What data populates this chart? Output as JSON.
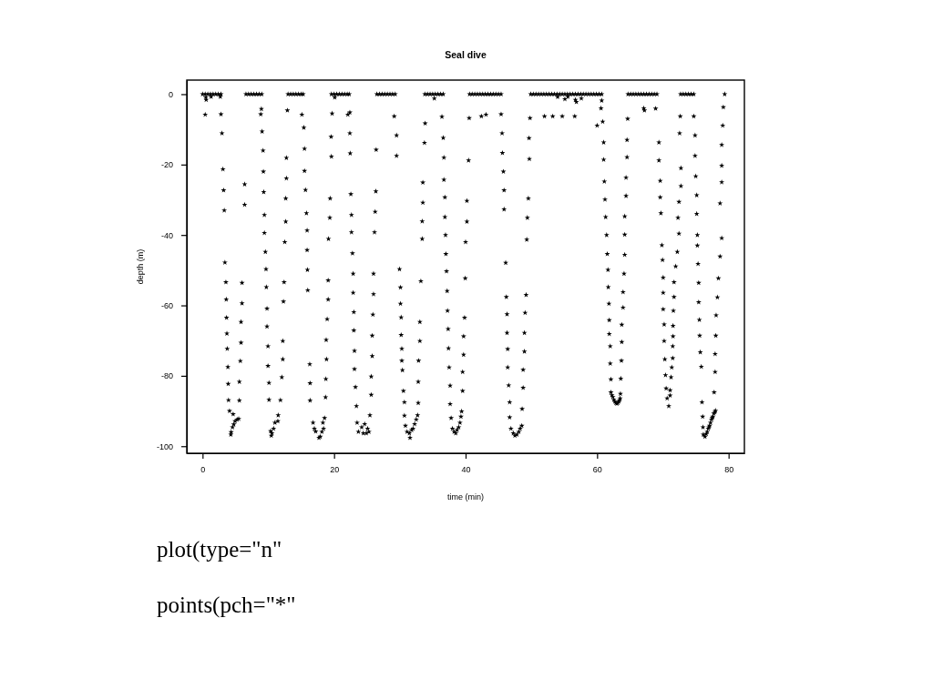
{
  "chart_data": {
    "type": "scatter",
    "title": "Seal dive",
    "xlabel": "time (min)",
    "ylabel": "depth (m)",
    "xlim": [
      -2.4,
      82.4
    ],
    "ylim": [
      -102,
      4
    ],
    "xticks": [
      0,
      20,
      40,
      60,
      80
    ],
    "yticks": [
      0,
      -20,
      -40,
      -60,
      -80,
      -100
    ],
    "color": "#000000",
    "marker": "star",
    "annotations": [
      "plot(type=\"n\"",
      "points(pch=\"*\""
    ],
    "x": [
      0,
      0.4,
      0.8,
      1.2,
      1.6,
      2.0,
      2.4,
      2.8,
      0.5,
      0.55,
      1.3,
      2.7,
      0.4,
      2.8,
      2.95,
      3.1,
      3.2,
      3.3,
      3.4,
      3.55,
      3.6,
      3.65,
      3.7,
      3.75,
      3.85,
      3.9,
      3.95,
      4.1,
      4.3,
      4.35,
      4.55,
      4.65,
      4.75,
      4.95,
      5.25,
      5.5,
      5.6,
      5.6,
      5.75,
      5.85,
      5.85,
      6.0,
      6.0,
      6.4,
      6.4,
      6.6,
      7.0,
      7.4,
      7.8,
      8.2,
      8.6,
      9.0,
      8.95,
      8.85,
      9.05,
      9.2,
      9.25,
      9.3,
      9.4,
      9.4,
      9.55,
      9.65,
      9.7,
      9.8,
      9.8,
      9.95,
      9.95,
      10.1,
      10.1,
      10.35,
      10.45,
      10.55,
      10.8,
      11.0,
      11.45,
      11.5,
      11.85,
      12.05,
      12.2,
      12.2,
      12.3,
      12.4,
      12.5,
      12.65,
      12.65,
      12.75,
      12.75,
      12.9,
      13.0,
      13.4,
      13.8,
      14.2,
      14.6,
      15.0,
      15.3,
      15.1,
      15.4,
      15.5,
      15.5,
      15.65,
      15.8,
      15.9,
      15.9,
      15.95,
      16.0,
      16.3,
      16.35,
      16.35,
      16.8,
      17.0,
      17.2,
      17.7,
      17.9,
      18.15,
      18.3,
      18.4,
      18.55,
      18.7,
      18.75,
      18.85,
      18.8,
      18.95,
      19.1,
      19.1,
      19.15,
      19.35,
      19.4,
      19.6,
      19.55,
      19.7,
      19.6,
      20.0,
      20.4,
      20.8,
      21.2,
      21.6,
      22.0,
      22.3,
      20.1,
      22.1,
      22.4,
      22.4,
      22.45,
      22.55,
      22.65,
      22.65,
      22.8,
      22.9,
      22.9,
      23.0,
      23.0,
      23.1,
      23.1,
      23.25,
      23.4,
      23.5,
      23.7,
      24.2,
      24.45,
      24.65,
      24.9,
      25.1,
      25.3,
      25.45,
      25.65,
      25.65,
      25.8,
      25.8,
      25.9,
      26.0,
      26.0,
      26.15,
      26.25,
      26.35,
      26.4,
      26.5,
      26.9,
      27.3,
      27.7,
      28.1,
      28.5,
      28.9,
      29.3,
      29.15,
      29.5,
      29.5,
      29.95,
      30.1,
      30.1,
      30.2,
      30.2,
      30.3,
      30.3,
      30.4,
      30.55,
      30.7,
      30.7,
      30.85,
      31.1,
      31.45,
      31.55,
      31.8,
      32.0,
      32.25,
      32.5,
      32.7,
      32.8,
      32.8,
      32.85,
      33.05,
      33.05,
      33.2,
      33.4,
      33.4,
      33.5,
      33.5,
      33.75,
      33.85,
      33.8,
      34.2,
      34.6,
      35.0,
      35.4,
      35.8,
      36.2,
      36.6,
      35.25,
      36.4,
      36.6,
      36.7,
      36.7,
      36.85,
      36.85,
      36.95,
      37.0,
      37.1,
      37.2,
      37.25,
      37.35,
      37.4,
      37.5,
      37.65,
      37.65,
      37.8,
      38.0,
      38.25,
      38.5,
      38.7,
      38.95,
      39.15,
      39.3,
      39.4,
      39.55,
      39.55,
      39.7,
      39.7,
      39.85,
      39.95,
      40.0,
      40.2,
      40.2,
      40.45,
      40.55,
      40.6,
      41.0,
      41.4,
      41.8,
      42.2,
      42.6,
      43.0,
      43.4,
      43.8,
      44.2,
      44.6,
      45.0,
      45.4,
      42.4,
      43.1,
      45.4,
      45.55,
      45.6,
      45.75,
      45.85,
      45.85,
      46.1,
      46.2,
      46.3,
      46.3,
      46.4,
      46.4,
      46.55,
      46.7,
      46.7,
      46.9,
      47.25,
      47.5,
      47.8,
      48.1,
      48.3,
      48.55,
      48.6,
      48.75,
      48.75,
      48.95,
      48.95,
      49.05,
      49.2,
      49.3,
      49.4,
      49.55,
      49.7,
      49.65,
      49.8,
      49.9,
      50.3,
      50.7,
      51.1,
      51.5,
      51.9,
      52.3,
      52.7,
      53.1,
      53.5,
      53.9,
      54.3,
      54.7,
      55.1,
      55.5,
      55.9,
      56.3,
      56.7,
      57.1,
      57.5,
      57.9,
      58.3,
      58.7,
      59.1,
      59.5,
      59.9,
      60.3,
      60.7,
      52.0,
      53.25,
      54.7,
      56.6,
      55.1,
      55.55,
      56.85,
      56.7,
      57.6,
      54.0,
      60.7,
      60.6,
      60.85,
      60.0,
      61.0,
      61.0,
      61.1,
      61.2,
      61.3,
      61.45,
      61.55,
      61.65,
      61.7,
      61.8,
      61.85,
      61.85,
      62.0,
      62.0,
      62.1,
      62.1,
      62.25,
      62.4,
      62.55,
      62.7,
      62.85,
      63.0,
      63.15,
      63.3,
      63.4,
      63.5,
      63.55,
      63.6,
      63.7,
      63.75,
      63.75,
      63.95,
      63.95,
      64.1,
      64.2,
      64.2,
      64.2,
      64.4,
      64.4,
      64.55,
      64.55,
      64.65,
      64.7,
      65.1,
      65.5,
      65.9,
      66.3,
      66.7,
      67.1,
      67.5,
      67.9,
      68.3,
      68.7,
      69.1,
      67.1,
      67.2,
      68.9,
      69.4,
      69.4,
      69.6,
      69.6,
      69.7,
      69.85,
      69.95,
      70.05,
      70.05,
      70.05,
      70.2,
      70.2,
      70.3,
      70.4,
      70.5,
      70.65,
      70.9,
      71.1,
      71.1,
      71.25,
      71.35,
      71.5,
      71.5,
      71.55,
      71.55,
      71.6,
      71.7,
      71.7,
      71.95,
      72.2,
      72.45,
      72.3,
      72.45,
      72.75,
      72.75,
      72.55,
      72.65,
      72.7,
      73.1,
      73.5,
      73.9,
      74.3,
      74.7,
      74.7,
      74.9,
      74.9,
      75.0,
      75.15,
      75.15,
      75.25,
      75.25,
      75.35,
      75.45,
      75.45,
      75.55,
      75.6,
      75.7,
      75.85,
      75.95,
      76.05,
      76.1,
      76.15,
      76.4,
      76.6,
      76.75,
      76.9,
      77.0,
      77.1,
      77.25,
      77.4,
      77.5,
      77.6,
      77.75,
      77.9,
      78.0,
      77.8,
      77.95,
      77.95,
      78.05,
      78.1,
      78.3,
      78.45,
      78.7,
      78.95,
      78.7,
      78.95,
      78.95,
      78.95,
      79.1,
      79.2,
      79.4
    ],
    "values": [
      0,
      0,
      0,
      0,
      0,
      0,
      0,
      0,
      -0.9,
      -1.6,
      -0.7,
      -0.7,
      -5.8,
      -5.7,
      -11.1,
      -21.3,
      -27.3,
      -33,
      -47.8,
      -53.4,
      -58.3,
      -63.5,
      -68,
      -72.3,
      -77.5,
      -82.3,
      -86.9,
      -90,
      -96.7,
      -96,
      -94.6,
      -90.9,
      -93.8,
      -92.9,
      -92.4,
      -92.2,
      -87,
      -81.7,
      -75.8,
      -70.6,
      -64.7,
      -59.4,
      -53.6,
      -31.4,
      -25.6,
      0,
      0,
      0,
      0,
      0,
      0,
      0,
      -4.2,
      -5.7,
      -10.6,
      -16,
      -22,
      -27.8,
      -34.3,
      -39.4,
      -44.8,
      -49.7,
      -54.8,
      -60.9,
      -66,
      -71.6,
      -77.2,
      -82,
      -86.8,
      -95.7,
      -97,
      -96.3,
      -95,
      -93.3,
      -92.9,
      -91.2,
      -86.9,
      -80.4,
      -75.3,
      -70.1,
      -58.9,
      -53.4,
      -42,
      -36.2,
      -29.6,
      -23.9,
      -18.1,
      -4.6,
      0,
      0,
      0,
      0,
      0,
      0,
      0,
      -5.8,
      -9.5,
      -15.5,
      -21.8,
      -27.2,
      -33.8,
      -38.7,
      -44.3,
      -49.9,
      -55.7,
      -76.7,
      -82.1,
      -87,
      -93.3,
      -95,
      -95.8,
      -97.6,
      -97.3,
      -95.9,
      -93.3,
      -95,
      -92,
      -86.1,
      -80.9,
      -75.3,
      -69.8,
      -63.9,
      -58.3,
      -52.9,
      -41.1,
      -35.1,
      -29.6,
      -17.7,
      -12.1,
      -5.5,
      0,
      0,
      0,
      0,
      0,
      0,
      0,
      0,
      -0.9,
      -5.8,
      -5.2,
      -11.1,
      -16.8,
      -28.4,
      -34.3,
      -39.2,
      -45.2,
      -51,
      -56.4,
      -61.9,
      -67.1,
      -72.9,
      -78.1,
      -83.2,
      -88.6,
      -93.3,
      -95.9,
      -94.6,
      -96.3,
      -93.7,
      -96.3,
      -95,
      -95.9,
      -91.2,
      -85.4,
      -80.2,
      -74.4,
      -68.6,
      -62.6,
      -56.8,
      -51,
      -39.2,
      -33.4,
      -27.6,
      -15.8,
      0,
      0,
      0,
      0,
      0,
      0,
      0,
      0,
      -6.3,
      -11.7,
      -17.5,
      -49.7,
      -54.9,
      -59.5,
      -63.4,
      -68.4,
      -72.3,
      -75.7,
      -78.4,
      -84.3,
      -87.5,
      -91.3,
      -94.2,
      -95.9,
      -96.3,
      -97.6,
      -95.4,
      -95,
      -93.7,
      -92.4,
      -91.2,
      -87.7,
      -81.7,
      -75.7,
      -70.1,
      -64.7,
      -53.1,
      -41.1,
      -36.1,
      -30.8,
      -25.1,
      -13.8,
      -8.3,
      0,
      0,
      0,
      0,
      0,
      0,
      0,
      0,
      -1.2,
      -6.4,
      -12.4,
      -18,
      -24.3,
      -29.3,
      -34.9,
      -40,
      -45.4,
      -50.3,
      -55.9,
      -61.5,
      -66.7,
      -72.2,
      -77.6,
      -82.8,
      -88,
      -92,
      -95,
      -95.9,
      -96.3,
      -95.4,
      -94.6,
      -93.3,
      -91.6,
      -90.1,
      -84.3,
      -78.9,
      -74,
      -68.8,
      -63.5,
      -52.3,
      -42,
      -36.2,
      -30.3,
      -18.8,
      -6.8,
      0,
      0,
      0,
      0,
      0,
      0,
      0,
      0,
      0,
      0,
      0,
      0,
      0,
      -6.3,
      -5.8,
      -5.7,
      -11.1,
      -16.7,
      -22,
      -27.3,
      -32.7,
      -47.9,
      -57.6,
      -62.5,
      -67.8,
      -72.4,
      -77.6,
      -82.7,
      -87.5,
      -91.8,
      -95,
      -96.3,
      -97,
      -96.7,
      -95.9,
      -95,
      -94.2,
      -89.4,
      -83.4,
      -78.3,
      -73.1,
      -67.8,
      -62.1,
      -57,
      -41.3,
      -35.1,
      -29.6,
      -18.4,
      -12.5,
      -6.8,
      0,
      0,
      0,
      0,
      0,
      0,
      0,
      0,
      0,
      0,
      0,
      0,
      0,
      0,
      0,
      0,
      0,
      0,
      0,
      0,
      0,
      0,
      0,
      0,
      0,
      0,
      0,
      0,
      -6.3,
      -6.3,
      -6.3,
      -6.3,
      -1.4,
      -0.7,
      -2.2,
      -1.6,
      -1.2,
      -0.8,
      -1.8,
      -4.0,
      -7.8,
      -8.9,
      -13.7,
      -18.6,
      -24.8,
      -29.9,
      -34.9,
      -40,
      -45.4,
      -49.9,
      -54.8,
      -59.5,
      -64.2,
      -68.1,
      -71.6,
      -76.5,
      -81,
      -84.7,
      -85.5,
      -86,
      -86.8,
      -87.3,
      -87.7,
      -87.9,
      -87.7,
      -87.3,
      -86.9,
      -86.4,
      -85.1,
      -80.8,
      -75.7,
      -70.4,
      -65.5,
      -60.6,
      -56.2,
      -51,
      -45.6,
      -39.9,
      -34.7,
      -28.9,
      -23.7,
      -17.9,
      -13,
      -7.0,
      0,
      0,
      0,
      0,
      0,
      0,
      0,
      0,
      0,
      0,
      0,
      0,
      -4.0,
      -4.6,
      -4.1,
      -13.7,
      -18.8,
      -24.6,
      -29.3,
      -33.8,
      -42.9,
      -47.1,
      -52.1,
      -56.4,
      -61.1,
      -65.4,
      -70.1,
      -75.3,
      -79.8,
      -83.6,
      -86.4,
      -88.6,
      -85.6,
      -84.1,
      -80.4,
      -77.6,
      -75,
      -71.6,
      -68.8,
      -65.8,
      -61.5,
      -57.6,
      -53.4,
      -48.9,
      -44.8,
      -39.6,
      -35.1,
      -30.6,
      -26.1,
      -21,
      -11.1,
      -6.3,
      0,
      0,
      0,
      0,
      0,
      0,
      -6.3,
      -11.7,
      -17.5,
      -23.3,
      -28.7,
      -34,
      -40,
      -43,
      -48.2,
      -53.6,
      -59.1,
      -64.1,
      -68.6,
      -73.3,
      -77.4,
      -87.5,
      -91.6,
      -94.6,
      -96.7,
      -97.3,
      -96.5,
      -95.9,
      -95,
      -94.6,
      -94.2,
      -93.3,
      -92.4,
      -92,
      -91.6,
      -90.7,
      -90.3,
      -89.9,
      -84.7,
      -78.9,
      -73.8,
      -68.6,
      -62.8,
      -57.7,
      -52.3,
      -46.1,
      -40.9,
      -31,
      -25,
      -20.3,
      -14.4,
      -8.9,
      -3.7,
      0
    ]
  }
}
